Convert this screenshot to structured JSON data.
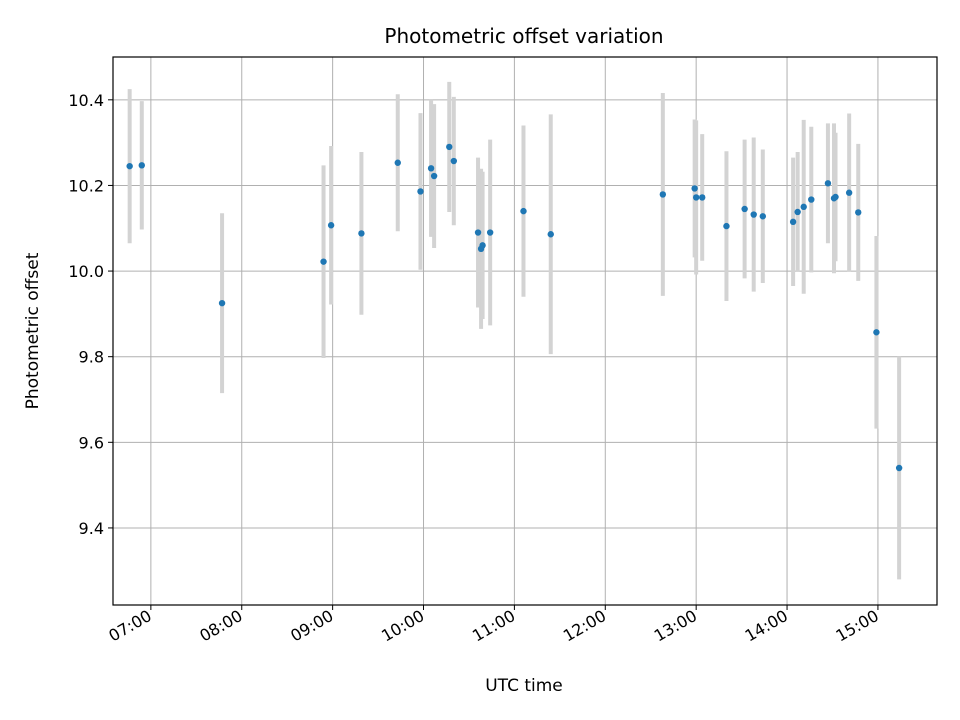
{
  "chart_data": {
    "type": "scatter",
    "title": "Photometric offset variation",
    "xlabel": "UTC time",
    "ylabel": "Photometric offset",
    "x_unit": "UTC hh:mm",
    "xlim": [
      "06:35",
      "15:39"
    ],
    "ylim": [
      9.22,
      10.5
    ],
    "x_ticks": [
      "07:00",
      "08:00",
      "09:00",
      "10:00",
      "11:00",
      "12:00",
      "13:00",
      "14:00",
      "15:00"
    ],
    "y_ticks": [
      9.4,
      9.6,
      9.8,
      10.0,
      10.2,
      10.4
    ],
    "y_tick_labels": [
      "9.4",
      "9.6",
      "9.8",
      "10.0",
      "10.2",
      "10.4"
    ],
    "grid": true,
    "colors": {
      "point": "#1f77b4",
      "errorbar": "#d3d3d3",
      "grid": "#b0b0b0"
    },
    "points": [
      {
        "x": "06:46",
        "y": 10.245,
        "err": 0.18
      },
      {
        "x": "06:54",
        "y": 10.247,
        "err": 0.15
      },
      {
        "x": "07:47",
        "y": 9.925,
        "err": 0.21
      },
      {
        "x": "08:54",
        "y": 10.022,
        "err": 0.225
      },
      {
        "x": "08:59",
        "y": 10.107,
        "err": 0.185
      },
      {
        "x": "09:19",
        "y": 10.088,
        "err": 0.19
      },
      {
        "x": "09:43",
        "y": 10.253,
        "err": 0.16
      },
      {
        "x": "09:58",
        "y": 10.186,
        "err": 0.183
      },
      {
        "x": "10:05",
        "y": 10.24,
        "err": 0.16
      },
      {
        "x": "10:07",
        "y": 10.222,
        "err": 0.168
      },
      {
        "x": "10:17",
        "y": 10.29,
        "err": 0.152
      },
      {
        "x": "10:20",
        "y": 10.257,
        "err": 0.15
      },
      {
        "x": "10:36",
        "y": 10.09,
        "err": 0.175
      },
      {
        "x": "10:38",
        "y": 10.052,
        "err": 0.187
      },
      {
        "x": "10:39",
        "y": 10.06,
        "err": 0.172
      },
      {
        "x": "10:44",
        "y": 10.09,
        "err": 0.217
      },
      {
        "x": "11:06",
        "y": 10.14,
        "err": 0.2
      },
      {
        "x": "11:24",
        "y": 10.086,
        "err": 0.28
      },
      {
        "x": "12:38",
        "y": 10.179,
        "err": 0.237
      },
      {
        "x": "12:59",
        "y": 10.193,
        "err": 0.161
      },
      {
        "x": "13:00",
        "y": 10.172,
        "err": 0.18
      },
      {
        "x": "13:04",
        "y": 10.172,
        "err": 0.148
      },
      {
        "x": "13:20",
        "y": 10.105,
        "err": 0.175
      },
      {
        "x": "13:32",
        "y": 10.145,
        "err": 0.162
      },
      {
        "x": "13:38",
        "y": 10.132,
        "err": 0.18
      },
      {
        "x": "13:44",
        "y": 10.128,
        "err": 0.156
      },
      {
        "x": "14:04",
        "y": 10.115,
        "err": 0.15
      },
      {
        "x": "14:07",
        "y": 10.138,
        "err": 0.14
      },
      {
        "x": "14:11",
        "y": 10.15,
        "err": 0.203
      },
      {
        "x": "14:16",
        "y": 10.167,
        "err": 0.17
      },
      {
        "x": "14:27",
        "y": 10.205,
        "err": 0.14
      },
      {
        "x": "14:31",
        "y": 10.17,
        "err": 0.175
      },
      {
        "x": "14:32",
        "y": 10.173,
        "err": 0.15
      },
      {
        "x": "14:41",
        "y": 10.183,
        "err": 0.185
      },
      {
        "x": "14:47",
        "y": 10.137,
        "err": 0.16
      },
      {
        "x": "14:59",
        "y": 9.857,
        "err": 0.225
      },
      {
        "x": "15:14",
        "y": 9.54,
        "err": 0.26
      }
    ]
  }
}
